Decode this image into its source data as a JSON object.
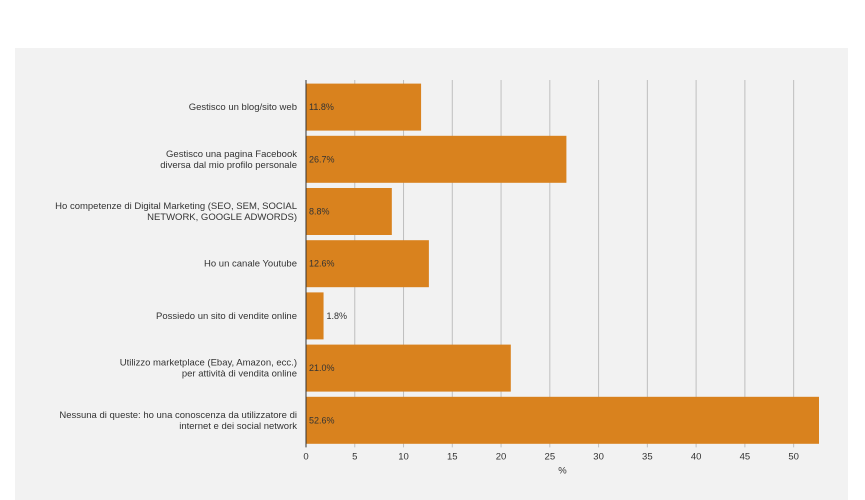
{
  "chart_data": {
    "type": "bar",
    "orientation": "horizontal",
    "categories": [
      [
        "Gestisco un blog/sito web"
      ],
      [
        "Gestisco una pagina Facebook",
        "diversa dal mio profilo personale"
      ],
      [
        "Ho competenze di Digital Marketing (SEO, SEM, SOCIAL",
        "NETWORK, GOOGLE ADWORDS)"
      ],
      [
        "Ho un canale Youtube"
      ],
      [
        "Possiedo un sito di vendite online"
      ],
      [
        "Utilizzo marketplace (Ebay, Amazon, ecc.)",
        "per attività di vendita online"
      ],
      [
        "Nessuna di queste: ho una conoscenza da utilizzatore di",
        "internet e dei social network"
      ]
    ],
    "values": [
      11.8,
      26.7,
      8.8,
      12.6,
      1.8,
      21.0,
      52.6
    ],
    "data_labels": [
      "11.8%",
      "26.7%",
      "8.8%",
      "12.6%",
      "1.8%",
      "21.0%",
      "52.6%"
    ],
    "xticks": [
      0,
      5,
      10,
      15,
      20,
      25,
      30,
      35,
      40,
      45,
      50
    ],
    "xlim": [
      0,
      52.6
    ],
    "xlabel": "%",
    "ylabel": "",
    "grid": true,
    "colors": {
      "bar": "#d9821e",
      "grid": "#bfbfbf",
      "axis": "#333333",
      "panel": "#f2f2f2"
    }
  }
}
